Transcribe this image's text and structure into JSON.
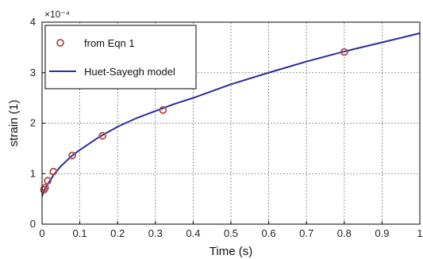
{
  "chart_data": {
    "type": "line",
    "title": "",
    "xlabel": "Time (s)",
    "ylabel": "strain (1)",
    "y_multiplier_label": "×10⁻⁴",
    "xlim": [
      0,
      1
    ],
    "ylim": [
      0,
      4
    ],
    "x_ticks": [
      "0",
      "0.1",
      "0.2",
      "0.3",
      "0.4",
      "0.5",
      "0.6",
      "0.7",
      "0.8",
      "0.9",
      "1"
    ],
    "y_ticks": [
      "0",
      "1",
      "2",
      "3",
      "4"
    ],
    "grid": true,
    "legend_position": "top-left",
    "series": [
      {
        "name": "from Eqn 1",
        "kind": "scatter",
        "color": "#b34a4a",
        "x": [
          0.005,
          0.008,
          0.015,
          0.03,
          0.08,
          0.16,
          0.32,
          0.8
        ],
        "y": [
          0.68,
          0.72,
          0.86,
          1.04,
          1.36,
          1.75,
          2.26,
          3.41
        ]
      },
      {
        "name": "Huet-Sayegh model",
        "kind": "line",
        "color": "#2b2b9e",
        "x": [
          0,
          0.005,
          0.01,
          0.02,
          0.03,
          0.05,
          0.08,
          0.1,
          0.15,
          0.2,
          0.25,
          0.3,
          0.35,
          0.4,
          0.5,
          0.6,
          0.7,
          0.8,
          0.9,
          1.0
        ],
        "y": [
          0.55,
          0.66,
          0.73,
          0.85,
          0.97,
          1.15,
          1.36,
          1.47,
          1.72,
          1.93,
          2.1,
          2.24,
          2.38,
          2.5,
          2.77,
          3.0,
          3.22,
          3.42,
          3.6,
          3.78
        ]
      }
    ]
  }
}
